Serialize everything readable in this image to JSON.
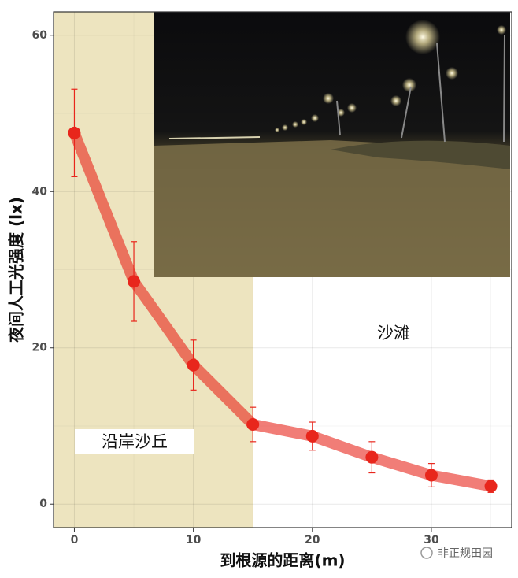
{
  "chart_data": {
    "type": "line",
    "x": [
      0,
      5,
      10,
      15,
      20,
      25,
      30,
      35
    ],
    "series": [
      {
        "color": "#e8261c",
        "values": [
          47.5,
          28.5,
          17.8,
          10.2,
          8.7,
          6.0,
          3.7,
          2.3
        ],
        "errors": [
          5.6,
          5.1,
          3.2,
          2.2,
          1.8,
          2.0,
          1.5,
          0.8
        ]
      }
    ],
    "xlabel": "到根源的距离(m)",
    "ylabel": "夜间人工光强度 (lx)",
    "xlim": [
      -1.75,
      36.75
    ],
    "xticks": [
      0,
      10,
      20,
      30
    ],
    "xminor": [
      5,
      15,
      25,
      35
    ],
    "ylim": [
      -3,
      63
    ],
    "yticks": [
      0,
      20,
      40,
      60
    ],
    "yminor": [
      10,
      30,
      50
    ],
    "grid": true,
    "shaded_region": {
      "xlim": [
        -1.75,
        15
      ],
      "color": "#ede4bf",
      "label": "沿岸沙丘"
    },
    "annotation": "沙滩",
    "watermark": "非正规田园"
  }
}
